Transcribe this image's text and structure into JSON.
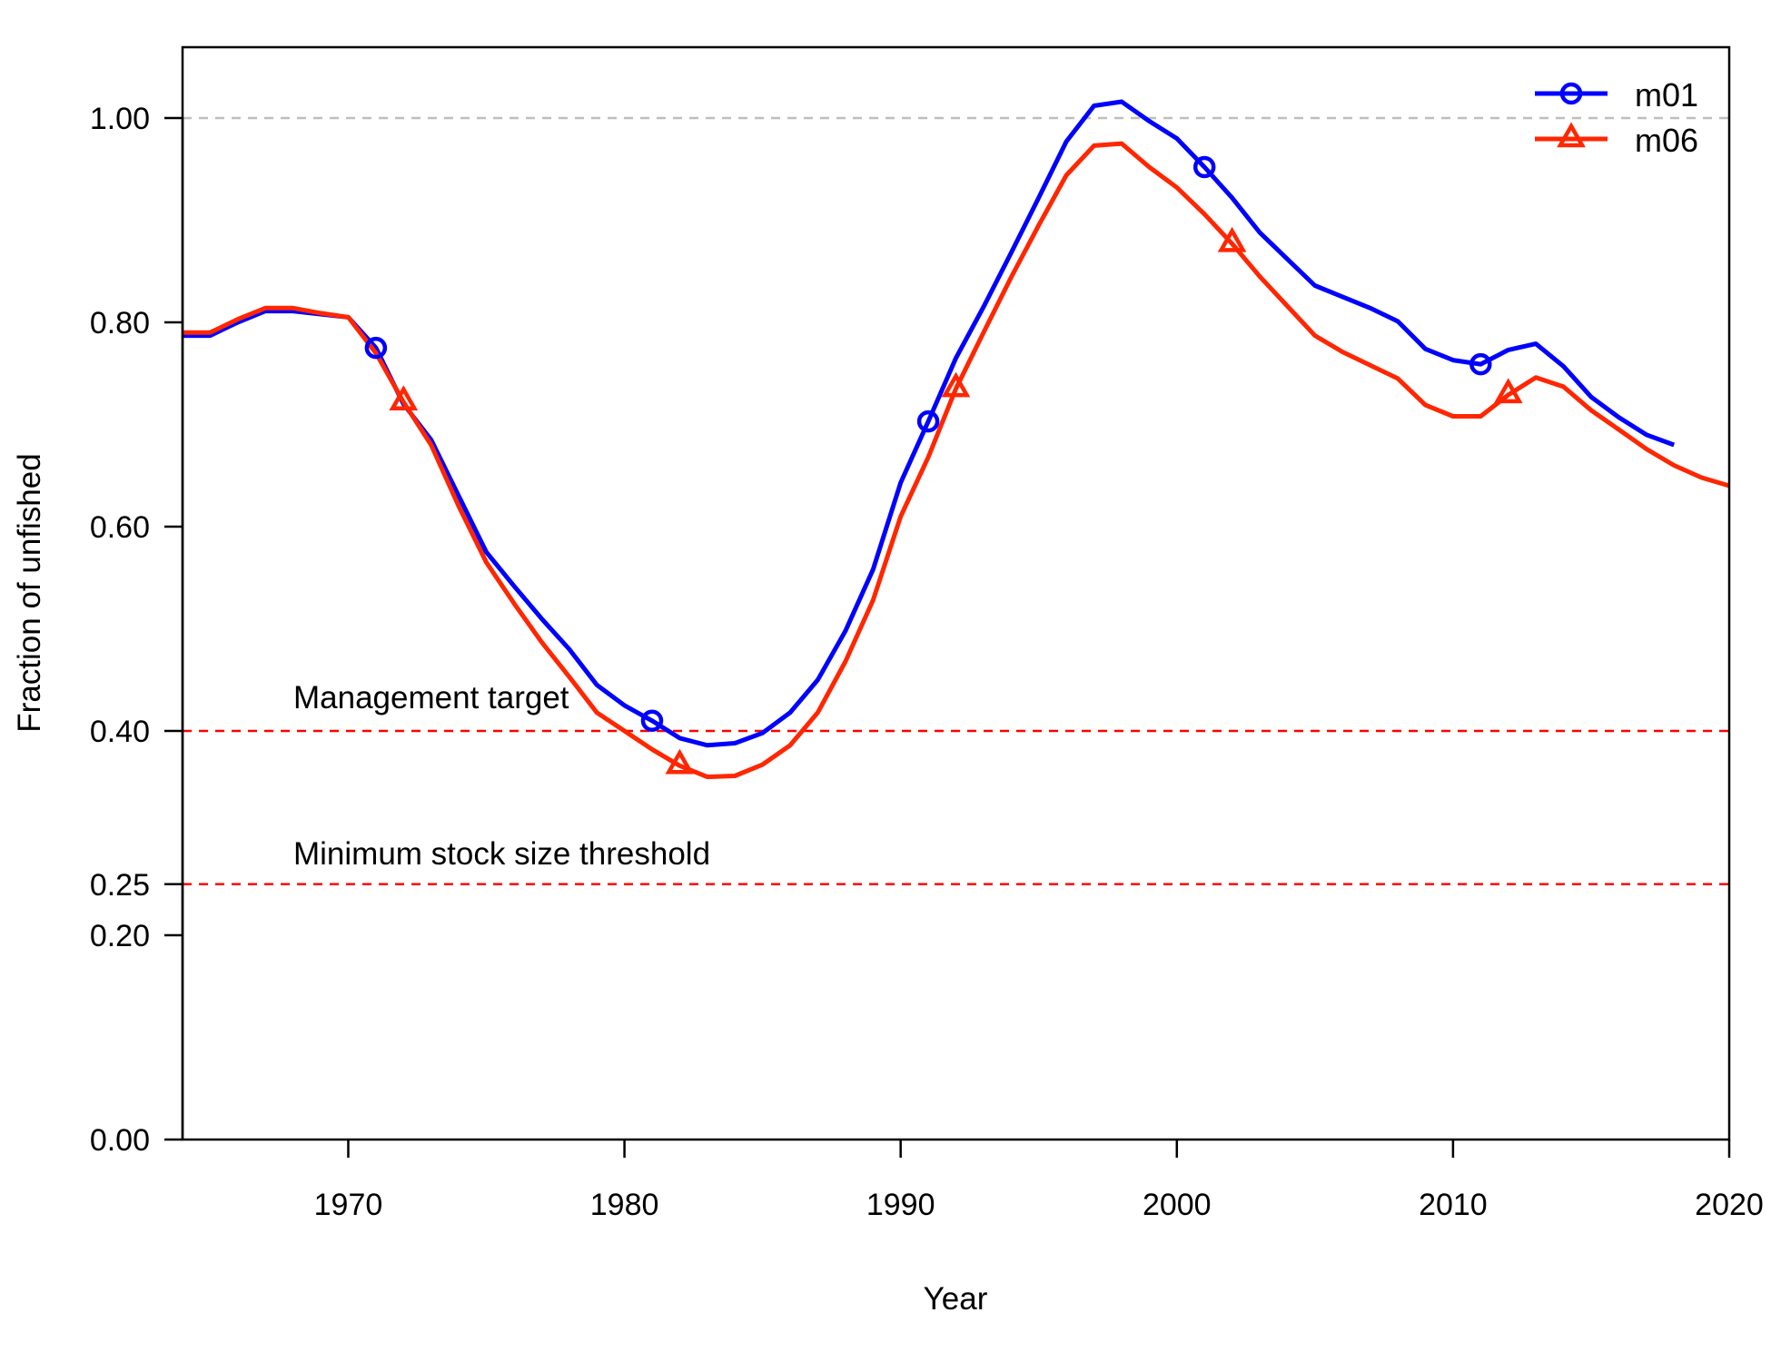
{
  "chart_data": {
    "type": "line",
    "title": "",
    "xlabel": "Year",
    "ylabel": "Fraction of unfished",
    "xlim": [
      1964,
      2020
    ],
    "ylim": [
      0,
      1.07
    ],
    "x_ticks": [
      1970,
      1980,
      1990,
      2000,
      2010,
      2020
    ],
    "y_ticks": [
      0.0,
      0.2,
      0.25,
      0.4,
      0.6,
      0.8,
      1.0
    ],
    "y_tick_labels": [
      "0.00",
      "0.20",
      "0.25",
      "0.40",
      "0.60",
      "0.80",
      "1.00"
    ],
    "legend_position": "top-right",
    "grid": false,
    "reference_lines": [
      {
        "value": 1.0,
        "color": "#bebebe",
        "style": "dashed",
        "label": ""
      },
      {
        "value": 0.4,
        "color": "#ff0000",
        "style": "dashed",
        "label": "Management target"
      },
      {
        "value": 0.25,
        "color": "#ff0000",
        "style": "dashed",
        "label": "Minimum stock size threshold"
      }
    ],
    "series": [
      {
        "name": "m01",
        "color": "#0000ff",
        "marker": "circle",
        "marker_x": [
          1971,
          1981,
          1991,
          2001,
          2011
        ],
        "x": [
          1964,
          1965,
          1966,
          1967,
          1968,
          1969,
          1970,
          1971,
          1972,
          1973,
          1974,
          1975,
          1976,
          1977,
          1978,
          1979,
          1980,
          1981,
          1982,
          1983,
          1984,
          1985,
          1986,
          1987,
          1988,
          1989,
          1990,
          1991,
          1992,
          1993,
          1994,
          1995,
          1996,
          1997,
          1998,
          1999,
          2000,
          2001,
          2002,
          2003,
          2004,
          2005,
          2006,
          2007,
          2008,
          2009,
          2010,
          2011,
          2012,
          2013,
          2014,
          2015,
          2016,
          2017,
          2018
        ],
        "y": [
          0.787,
          0.787,
          0.8,
          0.811,
          0.811,
          0.808,
          0.805,
          0.775,
          0.72,
          0.685,
          0.63,
          0.575,
          0.542,
          0.51,
          0.48,
          0.445,
          0.425,
          0.41,
          0.393,
          0.386,
          0.388,
          0.398,
          0.418,
          0.45,
          0.498,
          0.558,
          0.643,
          0.703,
          0.765,
          0.815,
          0.868,
          0.922,
          0.977,
          1.012,
          1.016,
          0.997,
          0.98,
          0.952,
          0.922,
          0.888,
          0.862,
          0.836,
          0.825,
          0.814,
          0.801,
          0.774,
          0.763,
          0.759,
          0.773,
          0.779,
          0.757,
          0.727,
          0.707,
          0.69,
          0.68
        ]
      },
      {
        "name": "m06",
        "color": "#ff2600",
        "marker": "triangle",
        "marker_x": [
          1972,
          1982,
          1992,
          2002,
          2012
        ],
        "x": [
          1964,
          1965,
          1966,
          1967,
          1968,
          1969,
          1970,
          1971,
          1972,
          1973,
          1974,
          1975,
          1976,
          1977,
          1978,
          1979,
          1980,
          1981,
          1982,
          1983,
          1984,
          1985,
          1986,
          1987,
          1988,
          1989,
          1990,
          1991,
          1992,
          1993,
          1994,
          1995,
          1996,
          1997,
          1998,
          1999,
          2000,
          2001,
          2002,
          2003,
          2004,
          2005,
          2006,
          2007,
          2008,
          2009,
          2010,
          2011,
          2012,
          2013,
          2014,
          2015,
          2016,
          2017,
          2018,
          2019,
          2020
        ],
        "y": [
          0.79,
          0.79,
          0.803,
          0.814,
          0.814,
          0.809,
          0.805,
          0.77,
          0.722,
          0.68,
          0.62,
          0.565,
          0.525,
          0.487,
          0.453,
          0.418,
          0.4,
          0.382,
          0.366,
          0.355,
          0.356,
          0.367,
          0.386,
          0.418,
          0.468,
          0.528,
          0.61,
          0.668,
          0.735,
          0.79,
          0.844,
          0.895,
          0.944,
          0.973,
          0.975,
          0.952,
          0.932,
          0.906,
          0.877,
          0.845,
          0.816,
          0.787,
          0.771,
          0.758,
          0.745,
          0.719,
          0.708,
          0.708,
          0.729,
          0.746,
          0.737,
          0.714,
          0.695,
          0.676,
          0.66,
          0.648,
          0.64
        ]
      }
    ]
  }
}
